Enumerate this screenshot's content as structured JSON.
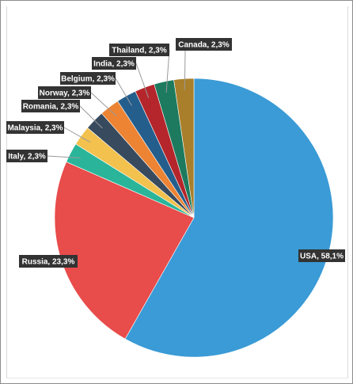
{
  "chart_data": {
    "type": "pie",
    "categories": [
      "USA",
      "Russia",
      "Italy",
      "Malaysia",
      "Romania",
      "Norway",
      "Belgium",
      "India",
      "Thailand",
      "Canada"
    ],
    "values": [
      58.1,
      23.3,
      2.3,
      2.3,
      2.3,
      2.3,
      2.3,
      2.3,
      2.3,
      2.3
    ],
    "labels": [
      "USA, 58,1%",
      "Russia, 23,3%",
      "Italy, 2,3%",
      "Malaysia, 2,3%",
      "Romania, 2,3%",
      "Norway, 2,3%",
      "Belgium, 2,3%",
      "India, 2,3%",
      "Thailand, 2,3%",
      "Canada, 2,3%"
    ],
    "colors": [
      "#3a9bd6",
      "#e84c4b",
      "#2ab59a",
      "#f2c14e",
      "#374a5e",
      "#ec8434",
      "#245e8c",
      "#b4262b",
      "#1d7a5e",
      "#a97f2b"
    ],
    "start": "12 o'clock",
    "direction": "clockwise",
    "legend": "none",
    "data_labels": "outside with leader lines"
  }
}
